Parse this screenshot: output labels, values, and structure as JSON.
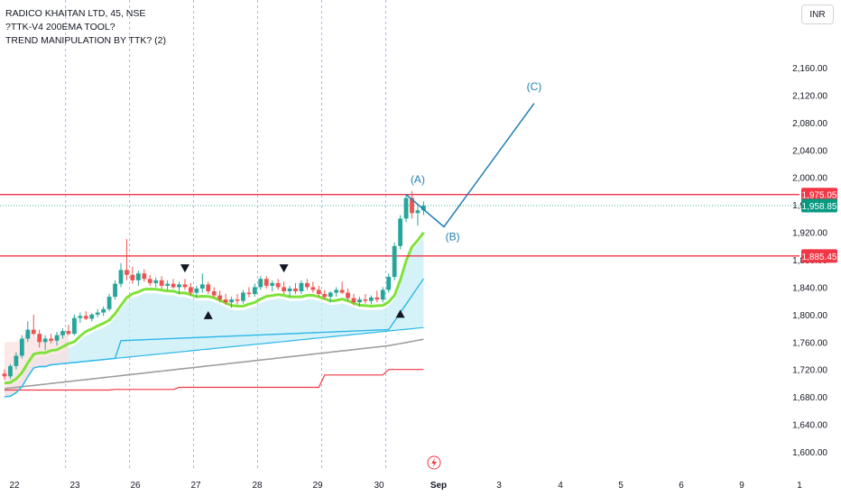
{
  "legend": {
    "symbol_line": "RADICO KHAITAN LTD, 45, NSE",
    "indicator_1": "?TTK-V4 200EMA TOOL?",
    "indicator_2": "TREND MANIPULATION BY TTK? (2)"
  },
  "currency_label": "INR",
  "colors": {
    "bull": "#26a69a",
    "bear": "#ef5350",
    "resistance": "#f23645",
    "trend_line": "#7ee23a",
    "cloud_fill": "#c8eef7",
    "cloud_line": "#2bb7e8",
    "ema": "#9e9e9e",
    "wave": "#1f7fb5",
    "last_price": "#089981"
  },
  "chart_data": {
    "type": "candlestick",
    "y_axis": {
      "ylim": [
        1570,
        2200
      ],
      "ticks": [
        1600,
        1640,
        1680,
        1720,
        1760,
        1800,
        1840,
        1880,
        1920,
        1960,
        2000,
        2040,
        2080,
        2120,
        2160
      ],
      "tick_labels": [
        "1,600.00",
        "1,640.00",
        "1,680.00",
        "1,720.00",
        "1,760.00",
        "1,800.00",
        "1,840.00",
        "1,880.00",
        "1,920.00",
        "1,960.00",
        "2,000.00",
        "2,040.00",
        "2,080.00",
        "2,120.00",
        "2,160.00"
      ]
    },
    "x_axis": {
      "tick_labels": [
        "22",
        "23",
        "26",
        "27",
        "28",
        "29",
        "30",
        "Sep",
        "3",
        "4",
        "5",
        "6",
        "9",
        "1"
      ],
      "session_separators": [
        "23",
        "26",
        "27",
        "28",
        "29",
        "30"
      ]
    },
    "horizontal_levels": [
      {
        "value": 1975.05,
        "label": "1,975.05"
      },
      {
        "value": 1885.45,
        "label": "1,885.45"
      }
    ],
    "last_price": {
      "value": 1958.85,
      "label": "1,958.85"
    },
    "candles": [
      [
        1714,
        1720,
        1705,
        1710
      ],
      [
        1710,
        1728,
        1706,
        1725
      ],
      [
        1725,
        1745,
        1720,
        1740
      ],
      [
        1740,
        1770,
        1736,
        1765
      ],
      [
        1765,
        1790,
        1760,
        1778
      ],
      [
        1778,
        1800,
        1770,
        1772
      ],
      [
        1772,
        1778,
        1752,
        1760
      ],
      [
        1760,
        1770,
        1748,
        1765
      ],
      [
        1765,
        1772,
        1758,
        1762
      ],
      [
        1762,
        1775,
        1755,
        1770
      ],
      [
        1770,
        1780,
        1765,
        1776
      ],
      [
        1776,
        1785,
        1770,
        1772
      ],
      [
        1772,
        1800,
        1770,
        1795
      ],
      [
        1795,
        1803,
        1788,
        1798
      ],
      [
        1798,
        1805,
        1792,
        1794
      ],
      [
        1794,
        1802,
        1790,
        1800
      ],
      [
        1800,
        1808,
        1796,
        1803
      ],
      [
        1803,
        1812,
        1798,
        1808
      ],
      [
        1808,
        1830,
        1805,
        1826
      ],
      [
        1826,
        1850,
        1822,
        1845
      ],
      [
        1845,
        1875,
        1840,
        1865
      ],
      [
        1865,
        1910,
        1850,
        1858
      ],
      [
        1858,
        1870,
        1845,
        1850
      ],
      [
        1850,
        1864,
        1842,
        1860
      ],
      [
        1860,
        1866,
        1848,
        1852
      ],
      [
        1852,
        1858,
        1842,
        1846
      ],
      [
        1846,
        1854,
        1840,
        1850
      ],
      [
        1850,
        1856,
        1838,
        1842
      ],
      [
        1842,
        1850,
        1836,
        1845
      ],
      [
        1845,
        1852,
        1838,
        1840
      ],
      [
        1840,
        1848,
        1830,
        1844
      ],
      [
        1844,
        1852,
        1836,
        1840
      ],
      [
        1840,
        1846,
        1828,
        1832
      ],
      [
        1832,
        1842,
        1825,
        1838
      ],
      [
        1838,
        1860,
        1832,
        1844
      ],
      [
        1844,
        1848,
        1830,
        1834
      ],
      [
        1834,
        1840,
        1825,
        1828
      ],
      [
        1828,
        1835,
        1818,
        1822
      ],
      [
        1822,
        1830,
        1814,
        1818
      ],
      [
        1818,
        1826,
        1810,
        1822
      ],
      [
        1822,
        1830,
        1815,
        1820
      ],
      [
        1820,
        1836,
        1816,
        1832
      ],
      [
        1832,
        1840,
        1825,
        1830
      ],
      [
        1830,
        1845,
        1826,
        1840
      ],
      [
        1840,
        1856,
        1836,
        1852
      ],
      [
        1852,
        1856,
        1838,
        1842
      ],
      [
        1842,
        1850,
        1834,
        1846
      ],
      [
        1846,
        1852,
        1836,
        1840
      ],
      [
        1840,
        1848,
        1830,
        1834
      ],
      [
        1834,
        1842,
        1826,
        1838
      ],
      [
        1838,
        1846,
        1830,
        1834
      ],
      [
        1834,
        1850,
        1830,
        1846
      ],
      [
        1846,
        1852,
        1836,
        1840
      ],
      [
        1840,
        1848,
        1832,
        1836
      ],
      [
        1836,
        1842,
        1826,
        1830
      ],
      [
        1830,
        1836,
        1822,
        1826
      ],
      [
        1826,
        1834,
        1818,
        1832
      ],
      [
        1832,
        1840,
        1826,
        1836
      ],
      [
        1836,
        1848,
        1830,
        1832
      ],
      [
        1832,
        1838,
        1820,
        1824
      ],
      [
        1824,
        1830,
        1814,
        1818
      ],
      [
        1818,
        1826,
        1812,
        1822
      ],
      [
        1822,
        1830,
        1816,
        1820
      ],
      [
        1820,
        1828,
        1815,
        1825
      ],
      [
        1825,
        1835,
        1818,
        1822
      ],
      [
        1822,
        1840,
        1818,
        1836
      ],
      [
        1836,
        1860,
        1832,
        1855
      ],
      [
        1855,
        1905,
        1850,
        1900
      ],
      [
        1900,
        1945,
        1895,
        1940
      ],
      [
        1940,
        1975,
        1935,
        1970
      ],
      [
        1970,
        1980,
        1940,
        1948
      ],
      [
        1948,
        1958,
        1930,
        1952
      ],
      [
        1952,
        1965,
        1945,
        1958.85
      ]
    ],
    "annotations": [
      {
        "text": "(A)",
        "value": 1992
      },
      {
        "text": "(B)",
        "value": 1908
      },
      {
        "text": "(C)",
        "value": 2127
      }
    ],
    "wave_path": [
      [
        1970,
        1975
      ],
      [
        1974,
        1928
      ],
      [
        1981,
        2108
      ]
    ],
    "signals": [
      {
        "type": "down",
        "index": 31,
        "value": 1868
      },
      {
        "type": "up",
        "index": 35,
        "value": 1800
      },
      {
        "type": "down",
        "index": 48,
        "value": 1868
      },
      {
        "type": "up",
        "index": 68,
        "value": 1802
      }
    ]
  }
}
